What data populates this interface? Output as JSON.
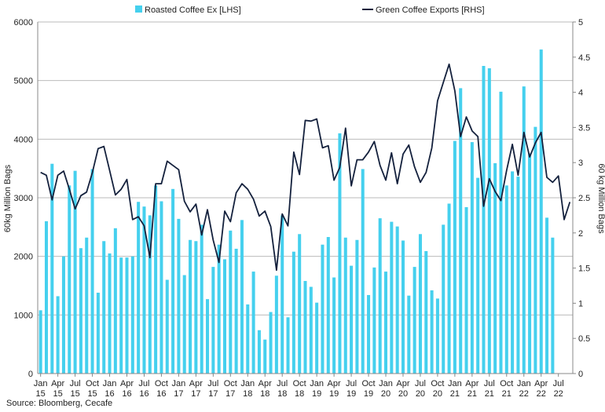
{
  "chart_data": {
    "type": "bar+line",
    "title": "",
    "source": "Source: Bloomberg, Cecafe",
    "colors": {
      "bars": "#45D0EE",
      "line": "#14213D",
      "grid": "#BBBBBB",
      "axis": "#888888"
    },
    "legend": {
      "placement": "top",
      "bar_label": "Roasted Coffee Ex [LHS]",
      "line_label": "Green Coffee Exports [RHS]"
    },
    "left_axis": {
      "label": "60kg Million Bags",
      "ylim": [
        0,
        6000
      ],
      "ticks": [
        "0",
        "1000",
        "2000",
        "3000",
        "4000",
        "5000",
        "6000"
      ]
    },
    "right_axis": {
      "label": "60 kg Million Bags",
      "ylim": [
        0,
        5
      ],
      "ticks": [
        "0",
        "0.5",
        "1",
        "1.5",
        "2",
        "2.5",
        "3",
        "3.5",
        "4",
        "4.5",
        "5"
      ]
    },
    "grid": true,
    "x_tick_labels": [
      {
        "month": "Jan",
        "year": "15"
      },
      {
        "month": "Apr",
        "year": "15"
      },
      {
        "month": "Jul",
        "year": "15"
      },
      {
        "month": "Oct",
        "year": "15"
      },
      {
        "month": "Jan",
        "year": "16"
      },
      {
        "month": "Apr",
        "year": "16"
      },
      {
        "month": "Jul",
        "year": "16"
      },
      {
        "month": "Oct",
        "year": "16"
      },
      {
        "month": "Jan",
        "year": "17"
      },
      {
        "month": "Apr",
        "year": "17"
      },
      {
        "month": "Jul",
        "year": "17"
      },
      {
        "month": "Oct",
        "year": "17"
      },
      {
        "month": "Jan",
        "year": "18"
      },
      {
        "month": "Apr",
        "year": "18"
      },
      {
        "month": "Jul",
        "year": "18"
      },
      {
        "month": "Oct",
        "year": "18"
      },
      {
        "month": "Jan",
        "year": "19"
      },
      {
        "month": "Apr",
        "year": "19"
      },
      {
        "month": "Jul",
        "year": "19"
      },
      {
        "month": "Oct",
        "year": "19"
      },
      {
        "month": "Jan",
        "year": "20"
      },
      {
        "month": "Apr",
        "year": "20"
      },
      {
        "month": "Jul",
        "year": "20"
      },
      {
        "month": "Oct",
        "year": "20"
      },
      {
        "month": "Jan",
        "year": "21"
      },
      {
        "month": "Apr",
        "year": "21"
      },
      {
        "month": "Jul",
        "year": "21"
      },
      {
        "month": "Oct",
        "year": "21"
      },
      {
        "month": "Jan",
        "year": "22"
      },
      {
        "month": "Apr",
        "year": "22"
      },
      {
        "month": "Jul",
        "year": "22"
      }
    ],
    "series": [
      {
        "name": "Roasted Coffee Ex [LHS]",
        "axis": "left",
        "type": "bar",
        "values": [
          1080,
          2600,
          3580,
          1320,
          2000,
          3210,
          3460,
          2140,
          2320,
          3490,
          1380,
          2260,
          2050,
          2480,
          1980,
          1980,
          2000,
          2930,
          2850,
          2700,
          3210,
          2940,
          1600,
          3150,
          2640,
          1680,
          2280,
          2260,
          2540,
          1270,
          1820,
          2200,
          1950,
          2440,
          2130,
          2620,
          1180,
          1740,
          740,
          580,
          1050,
          1670,
          2700,
          960,
          2080,
          2380,
          1580,
          1480,
          1210,
          2200,
          2330,
          1640,
          4100,
          2320,
          1840,
          2280,
          3490,
          1340,
          1810,
          2650,
          1740,
          2590,
          2510,
          2270,
          1330,
          1820,
          2380,
          2090,
          1420,
          1280,
          2540,
          2900,
          3970,
          4870,
          2840,
          3950,
          3340,
          5250,
          5210,
          3590,
          4810,
          3210,
          3450,
          3360,
          4900,
          3760,
          4210,
          5530,
          2660,
          2320
        ]
      },
      {
        "name": "Green Coffee Exports [RHS]",
        "axis": "right",
        "type": "line",
        "values": [
          2.86,
          2.82,
          2.47,
          2.82,
          2.88,
          2.62,
          2.34,
          2.53,
          2.58,
          2.86,
          3.2,
          3.23,
          2.89,
          2.54,
          2.62,
          2.76,
          2.19,
          2.23,
          2.1,
          1.65,
          2.7,
          2.7,
          3.02,
          2.96,
          2.9,
          2.45,
          2.3,
          2.41,
          1.97,
          2.33,
          1.9,
          1.58,
          2.31,
          2.16,
          2.57,
          2.7,
          2.62,
          2.48,
          2.24,
          2.31,
          2.09,
          1.47,
          2.27,
          2.1,
          3.15,
          2.83,
          3.6,
          3.59,
          3.62,
          3.21,
          3.24,
          2.75,
          2.93,
          3.49,
          2.67,
          3.04,
          3.04,
          3.15,
          3.3,
          2.96,
          2.75,
          3.14,
          2.7,
          3.12,
          3.25,
          2.94,
          2.72,
          2.86,
          3.21,
          3.88,
          4.14,
          4.4,
          4.02,
          3.37,
          3.65,
          3.45,
          3.37,
          2.38,
          2.77,
          2.59,
          2.46,
          2.89,
          3.26,
          2.82,
          3.43,
          3.08,
          3.28,
          3.43,
          2.79,
          2.72,
          2.81,
          2.19,
          2.44
        ]
      }
    ]
  }
}
